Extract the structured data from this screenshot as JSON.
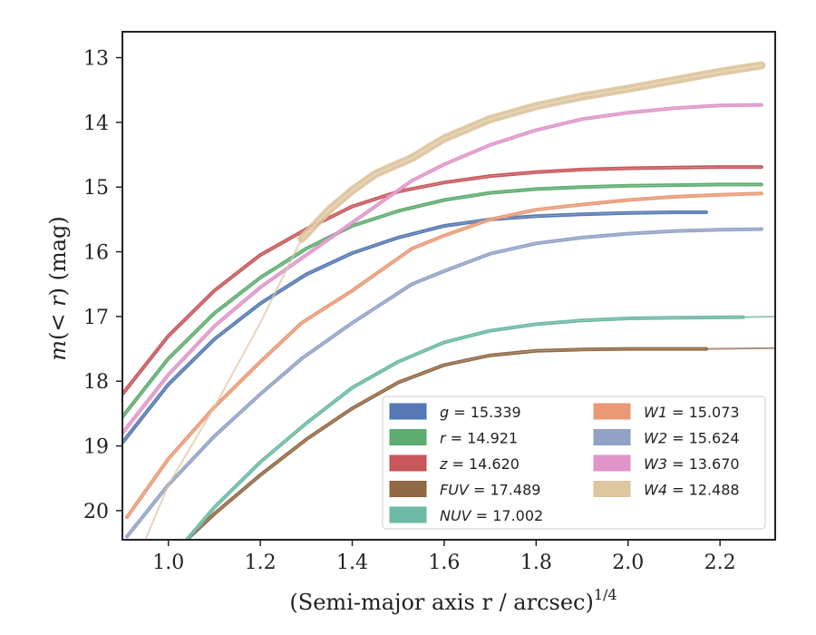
{
  "chart_data": {
    "type": "line",
    "xlabel": "(Semi-major axis r / arcsec)",
    "xlabel_exponent": "1/4",
    "ylabel": "m(< r) (mag)",
    "xlim": [
      0.9,
      2.32
    ],
    "ylim": [
      20.45,
      12.6
    ],
    "y_inverted": true,
    "x_ticks": [
      1.0,
      1.2,
      1.4,
      1.6,
      1.8,
      2.0,
      2.2
    ],
    "x_tick_labels": [
      "1.0",
      "1.2",
      "1.4",
      "1.6",
      "1.8",
      "2.0",
      "2.2"
    ],
    "y_ticks": [
      13,
      14,
      15,
      16,
      17,
      18,
      19,
      20
    ],
    "y_tick_labels": [
      "13",
      "14",
      "15",
      "16",
      "17",
      "18",
      "19",
      "20"
    ],
    "grid": false,
    "legend_position": "bottom-right",
    "legend_columns": 2,
    "series": [
      {
        "name": "g = 15.339",
        "label_var": "g",
        "label_val": "15.339",
        "color": "#4c72b0",
        "x": [
          0.9,
          1.0,
          1.1,
          1.2,
          1.3,
          1.4,
          1.5,
          1.6,
          1.7,
          1.8,
          1.9,
          2.0,
          2.1,
          2.17
        ],
        "y": [
          18.95,
          18.05,
          17.35,
          16.8,
          16.35,
          16.02,
          15.78,
          15.6,
          15.5,
          15.45,
          15.42,
          15.4,
          15.39,
          15.39
        ],
        "ext_x": [],
        "ext_y": []
      },
      {
        "name": "r = 14.921",
        "label_var": "r",
        "label_val": "14.921",
        "color": "#55a868",
        "x": [
          0.9,
          1.0,
          1.1,
          1.2,
          1.3,
          1.4,
          1.5,
          1.6,
          1.7,
          1.8,
          1.9,
          2.0,
          2.1,
          2.2,
          2.29
        ],
        "y": [
          18.55,
          17.65,
          16.95,
          16.4,
          15.95,
          15.6,
          15.37,
          15.2,
          15.09,
          15.03,
          15.0,
          14.98,
          14.97,
          14.96,
          14.96
        ],
        "ext_x": [],
        "ext_y": []
      },
      {
        "name": "z = 14.620",
        "label_var": "z",
        "label_val": "14.620",
        "color": "#c44e52",
        "x": [
          0.9,
          1.0,
          1.1,
          1.2,
          1.3,
          1.4,
          1.5,
          1.6,
          1.7,
          1.8,
          1.9,
          2.0,
          2.1,
          2.2,
          2.29
        ],
        "y": [
          18.2,
          17.3,
          16.6,
          16.05,
          15.65,
          15.3,
          15.07,
          14.93,
          14.83,
          14.77,
          14.73,
          14.71,
          14.7,
          14.69,
          14.69
        ],
        "ext_x": [],
        "ext_y": []
      },
      {
        "name": "FUV = 17.489",
        "label_var": "FUV",
        "label_val": "17.489",
        "color": "#8c613c",
        "x": [
          1.04,
          1.1,
          1.2,
          1.3,
          1.4,
          1.5,
          1.6,
          1.7,
          1.8,
          1.9,
          2.0,
          2.1,
          2.17
        ],
        "y": [
          20.45,
          20.05,
          19.45,
          18.9,
          18.42,
          18.02,
          17.75,
          17.6,
          17.53,
          17.51,
          17.5,
          17.5,
          17.5
        ],
        "ext_x": [
          2.17,
          2.32
        ],
        "ext_y": [
          17.5,
          17.49
        ]
      },
      {
        "name": "NUV = 17.002",
        "label_var": "NUV",
        "label_val": "17.002",
        "color": "#64b5a0",
        "x": [
          1.04,
          1.1,
          1.2,
          1.3,
          1.4,
          1.5,
          1.6,
          1.7,
          1.8,
          1.9,
          2.0,
          2.1,
          2.25
        ],
        "y": [
          20.45,
          19.95,
          19.25,
          18.65,
          18.1,
          17.7,
          17.4,
          17.22,
          17.12,
          17.06,
          17.03,
          17.02,
          17.01
        ],
        "ext_x": [
          2.25,
          2.32
        ],
        "ext_y": [
          17.01,
          17.0
        ]
      },
      {
        "name": "W1 = 15.073",
        "label_var": "W1",
        "label_val": "15.073",
        "color": "#e8956e",
        "x": [
          0.91,
          1.0,
          1.1,
          1.2,
          1.29,
          1.4,
          1.53,
          1.6,
          1.7,
          1.8,
          1.9,
          2.0,
          2.1,
          2.2,
          2.29
        ],
        "y": [
          20.1,
          19.2,
          18.4,
          17.7,
          17.1,
          16.6,
          15.95,
          15.75,
          15.5,
          15.35,
          15.27,
          15.2,
          15.15,
          15.12,
          15.1
        ],
        "ext_x": [],
        "ext_y": []
      },
      {
        "name": "W2 = 15.624",
        "label_var": "W2",
        "label_val": "15.624",
        "color": "#8c9dc4",
        "x": [
          0.91,
          1.0,
          1.1,
          1.2,
          1.29,
          1.4,
          1.53,
          1.6,
          1.7,
          1.8,
          1.9,
          2.0,
          2.1,
          2.2,
          2.29
        ],
        "y": [
          20.4,
          19.6,
          18.85,
          18.2,
          17.65,
          17.1,
          16.5,
          16.3,
          16.03,
          15.87,
          15.78,
          15.72,
          15.68,
          15.66,
          15.65
        ],
        "ext_x": [],
        "ext_y": []
      },
      {
        "name": "W3 = 13.670",
        "label_var": "W3",
        "label_val": "13.670",
        "color": "#dd8fc6",
        "x": [
          0.9,
          1.0,
          1.1,
          1.2,
          1.3,
          1.4,
          1.53,
          1.6,
          1.7,
          1.8,
          1.9,
          2.0,
          2.1,
          2.2,
          2.29
        ],
        "y": [
          18.8,
          17.9,
          17.15,
          16.55,
          16.05,
          15.55,
          14.9,
          14.65,
          14.35,
          14.12,
          13.95,
          13.85,
          13.78,
          13.74,
          13.73
        ],
        "ext_x": [],
        "ext_y": []
      },
      {
        "name": "W4 = 12.488",
        "label_var": "W4",
        "label_val": "12.488",
        "color": "#dcc39a",
        "x": [
          1.29,
          1.35,
          1.4,
          1.45,
          1.53,
          1.6,
          1.7,
          1.8,
          1.9,
          2.0,
          2.1,
          2.2,
          2.29
        ],
        "y": [
          15.8,
          15.35,
          15.05,
          14.8,
          14.55,
          14.25,
          13.95,
          13.75,
          13.6,
          13.48,
          13.35,
          13.22,
          13.12
        ],
        "ext_x": [
          0.95,
          1.0,
          1.1,
          1.2,
          1.29
        ],
        "ext_y": [
          20.45,
          19.6,
          18.4,
          17.1,
          15.8
        ]
      }
    ]
  }
}
